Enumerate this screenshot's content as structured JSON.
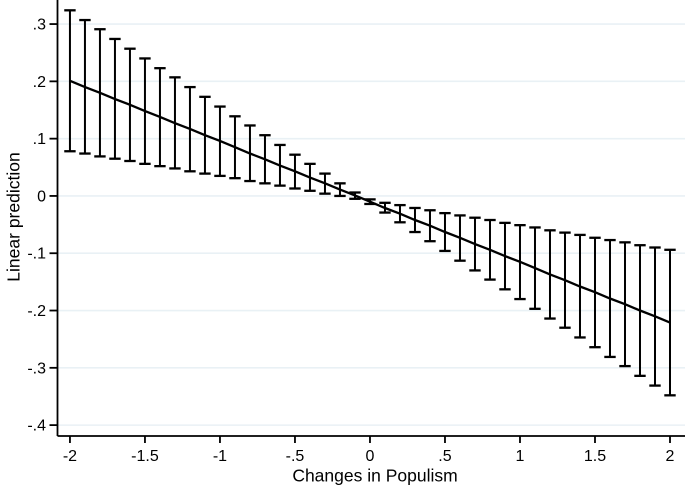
{
  "figure": {
    "background_color": "#ffffff",
    "line_color": "#000000",
    "grid_color": "#e9f1f5",
    "axis_color": "#000000"
  },
  "chart_data": {
    "type": "line",
    "title": "",
    "xlabel": "Changes in Populism",
    "ylabel": "Linear prediction",
    "grid": "horizontal",
    "legend": "none",
    "xlim": [
      -2.083,
      2.1
    ],
    "ylim": [
      -0.419,
      0.342
    ],
    "x_ticks": [
      -2,
      -1.5,
      -1,
      -0.5,
      0,
      0.5,
      1,
      1.5,
      2
    ],
    "x_tick_labels": [
      "-2",
      "-1.5",
      "-1",
      "-.5",
      "0",
      ".5",
      "1",
      "1.5",
      "2"
    ],
    "y_ticks": [
      0.3,
      0.2,
      0.1,
      0,
      -0.1,
      -0.2,
      -0.3,
      -0.4
    ],
    "y_tick_labels": [
      ".3",
      ".2",
      ".1",
      "0",
      "-.1",
      "-.2",
      "-.3",
      "-.4"
    ],
    "series": [
      {
        "name": "linear-prediction-fit",
        "type": "line",
        "x": [
          -2.0,
          -1.9,
          -1.8,
          -1.7,
          -1.6,
          -1.5,
          -1.4,
          -1.3,
          -1.2,
          -1.1,
          -1.0,
          -0.9,
          -0.8,
          -0.7,
          -0.6,
          -0.5,
          -0.4,
          -0.3,
          -0.2,
          -0.1,
          0.0,
          0.1,
          0.2,
          0.3,
          0.4,
          0.5,
          0.6,
          0.7,
          0.8,
          0.9,
          1.0,
          1.1,
          1.2,
          1.3,
          1.4,
          1.5,
          1.6,
          1.7,
          1.8,
          1.9,
          2.0
        ],
        "y": [
          0.201,
          0.19,
          0.18,
          0.169,
          0.159,
          0.148,
          0.138,
          0.127,
          0.117,
          0.106,
          0.096,
          0.085,
          0.074,
          0.064,
          0.053,
          0.043,
          0.032,
          0.022,
          0.011,
          0.001,
          -0.01,
          -0.021,
          -0.031,
          -0.042,
          -0.052,
          -0.063,
          -0.073,
          -0.084,
          -0.094,
          -0.105,
          -0.115,
          -0.126,
          -0.137,
          -0.147,
          -0.158,
          -0.168,
          -0.179,
          -0.189,
          -0.2,
          -0.21,
          -0.221
        ]
      },
      {
        "name": "confidence-interval",
        "type": "errorbar",
        "x": [
          -2.0,
          -1.9,
          -1.8,
          -1.7,
          -1.6,
          -1.5,
          -1.4,
          -1.3,
          -1.2,
          -1.1,
          -1.0,
          -0.9,
          -0.8,
          -0.7,
          -0.6,
          -0.5,
          -0.4,
          -0.3,
          -0.2,
          -0.1,
          0.0,
          0.1,
          0.2,
          0.3,
          0.4,
          0.5,
          0.6,
          0.7,
          0.8,
          0.9,
          1.0,
          1.1,
          1.2,
          1.3,
          1.4,
          1.5,
          1.6,
          1.7,
          1.8,
          1.9,
          2.0
        ],
        "low": [
          0.078,
          0.074,
          0.069,
          0.065,
          0.061,
          0.056,
          0.052,
          0.048,
          0.043,
          0.039,
          0.035,
          0.031,
          0.026,
          0.022,
          0.018,
          0.013,
          0.009,
          0.004,
          0.0,
          -0.005,
          -0.014,
          -0.029,
          -0.046,
          -0.063,
          -0.079,
          -0.096,
          -0.113,
          -0.13,
          -0.146,
          -0.163,
          -0.18,
          -0.197,
          -0.214,
          -0.23,
          -0.247,
          -0.264,
          -0.281,
          -0.297,
          -0.314,
          -0.331,
          -0.348
        ],
        "high": [
          0.324,
          0.307,
          0.291,
          0.274,
          0.257,
          0.24,
          0.223,
          0.207,
          0.19,
          0.173,
          0.156,
          0.139,
          0.123,
          0.106,
          0.089,
          0.072,
          0.056,
          0.039,
          0.022,
          0.006,
          -0.006,
          -0.012,
          -0.016,
          -0.021,
          -0.025,
          -0.03,
          -0.034,
          -0.038,
          -0.042,
          -0.047,
          -0.051,
          -0.055,
          -0.06,
          -0.064,
          -0.068,
          -0.073,
          -0.077,
          -0.081,
          -0.086,
          -0.09,
          -0.094
        ]
      }
    ]
  }
}
